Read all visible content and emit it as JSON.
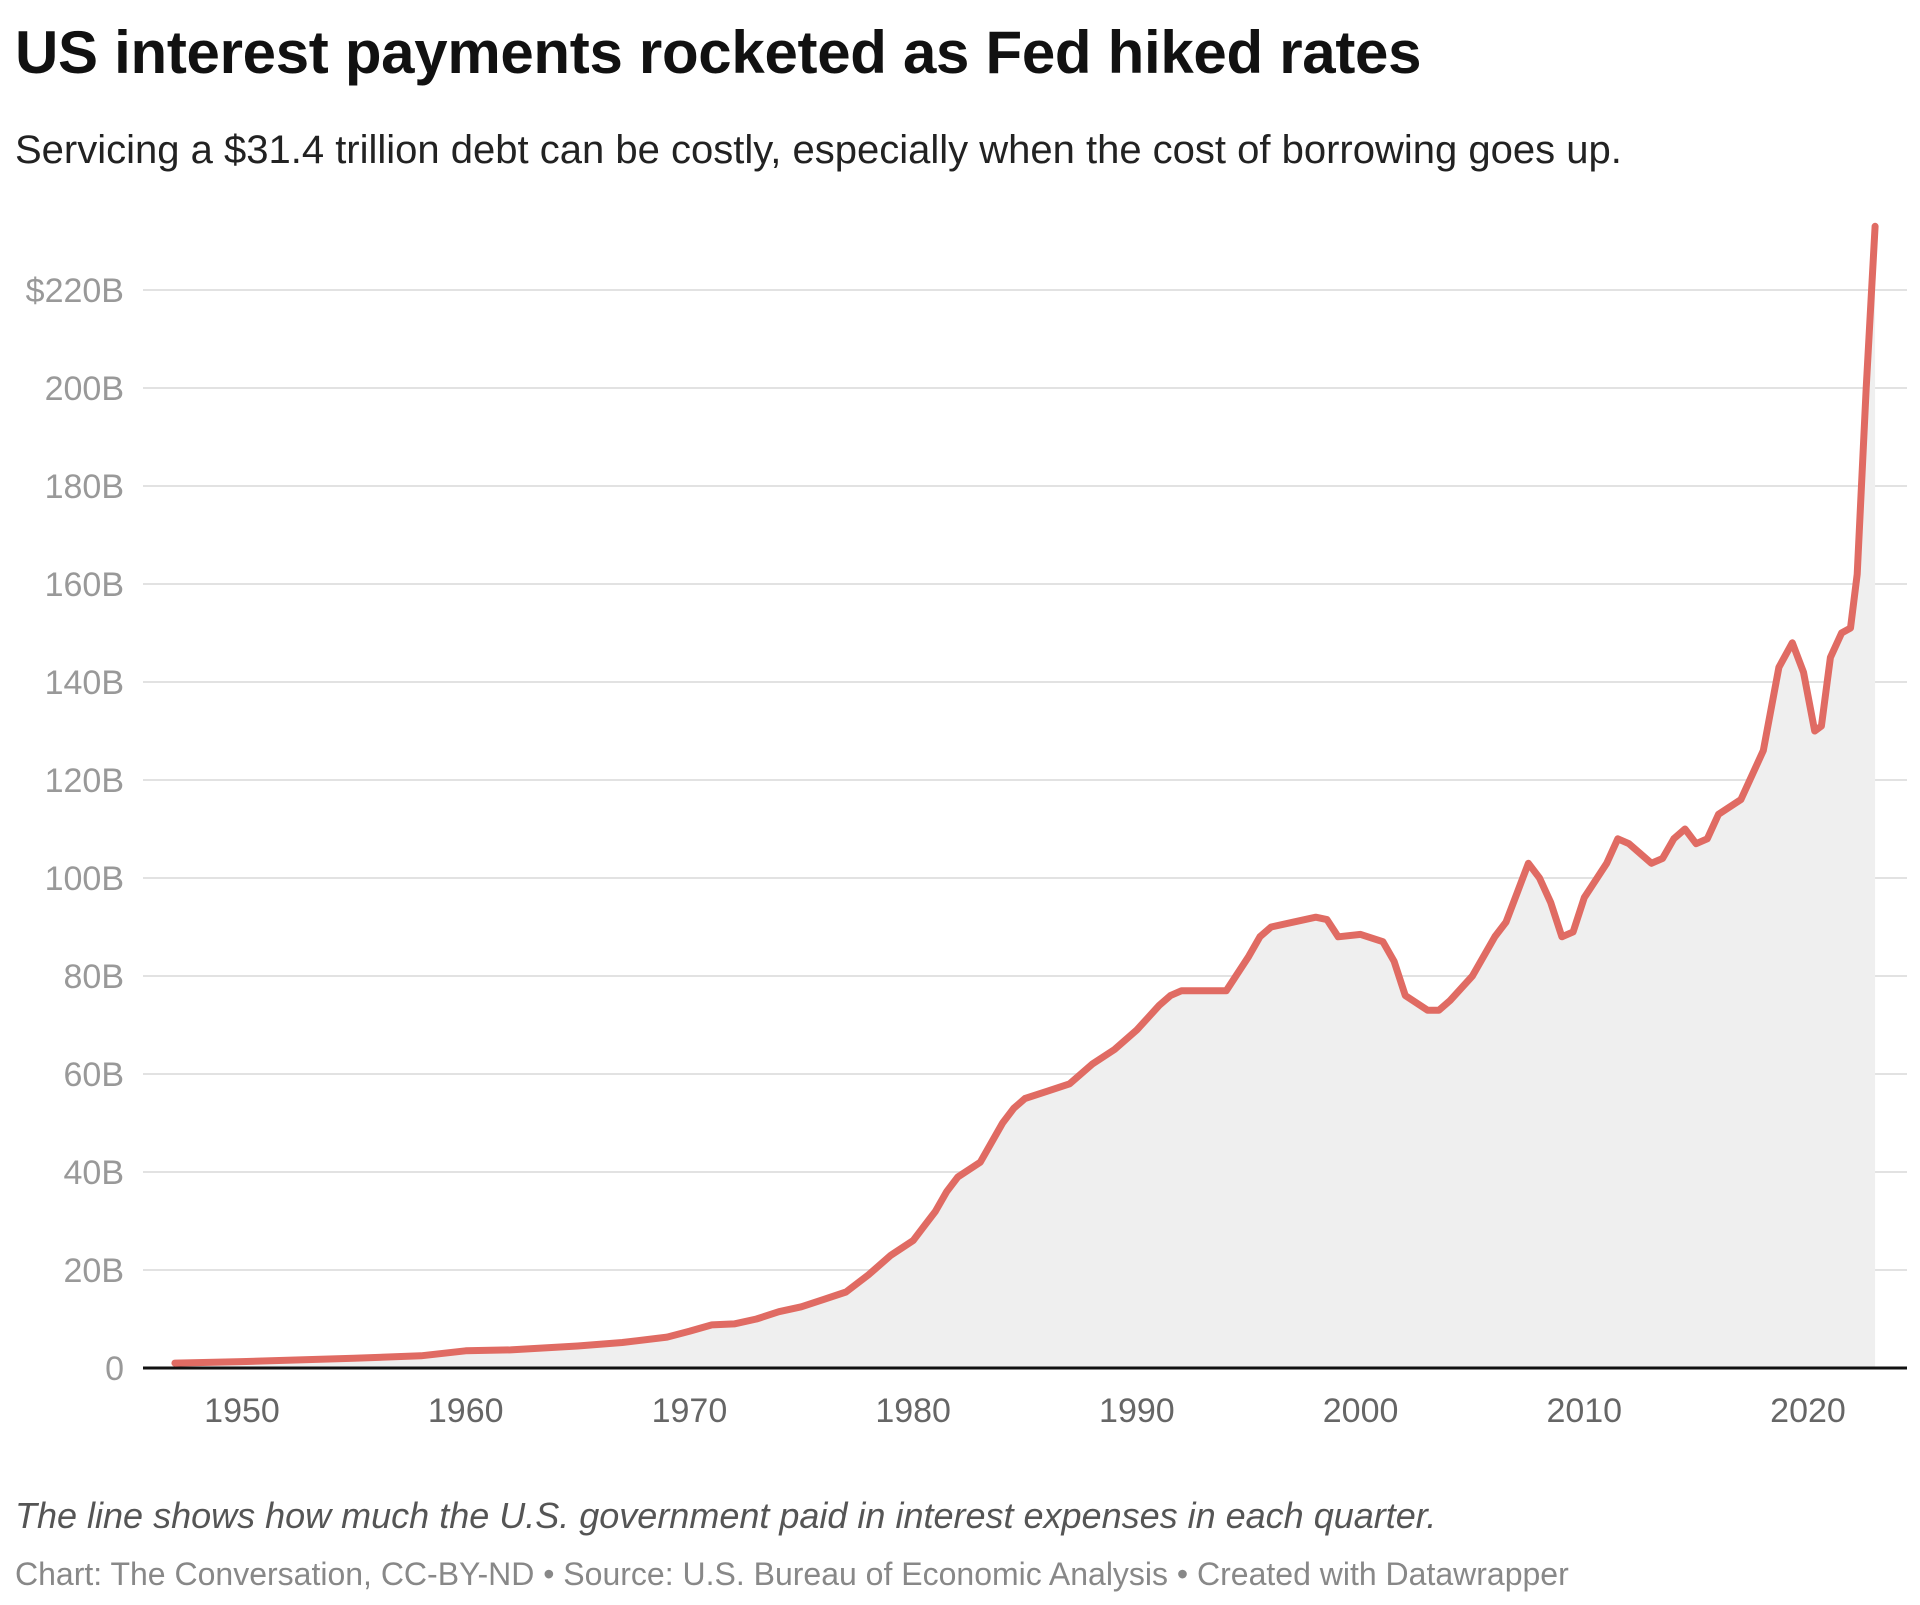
{
  "chart_data": {
    "type": "area",
    "title": "US interest payments rocketed as Fed hiked rates",
    "subtitle": "Servicing a $31.4 trillion debt can be costly, especially when the cost of borrowing goes up.",
    "notes": "The line shows how much the U.S. government paid in interest expenses in each quarter.",
    "credits": "Chart: The Conversation, CC-BY-ND • Source: U.S. Bureau of Economic Analysis • Created with Datawrapper",
    "xlabel": "",
    "ylabel": "",
    "xlim": [
      1947,
      2023
    ],
    "ylim": [
      0,
      220
    ],
    "grid": true,
    "line_color": "#e06b63",
    "fill_color": "#efefef",
    "y_ticks": [
      {
        "value": 0,
        "label": "0"
      },
      {
        "value": 20,
        "label": "20B"
      },
      {
        "value": 40,
        "label": "40B"
      },
      {
        "value": 60,
        "label": "60B"
      },
      {
        "value": 80,
        "label": "80B"
      },
      {
        "value": 100,
        "label": "100B"
      },
      {
        "value": 120,
        "label": "120B"
      },
      {
        "value": 140,
        "label": "140B"
      },
      {
        "value": 160,
        "label": "160B"
      },
      {
        "value": 180,
        "label": "180B"
      },
      {
        "value": 200,
        "label": "200B"
      },
      {
        "value": 220,
        "label": "$220B"
      }
    ],
    "x_ticks": [
      {
        "value": 1950,
        "label": "1950"
      },
      {
        "value": 1960,
        "label": "1960"
      },
      {
        "value": 1970,
        "label": "1970"
      },
      {
        "value": 1980,
        "label": "1980"
      },
      {
        "value": 1990,
        "label": "1990"
      },
      {
        "value": 2000,
        "label": "2000"
      },
      {
        "value": 2010,
        "label": "2010"
      },
      {
        "value": 2020,
        "label": "2020"
      }
    ],
    "series": [
      {
        "x": [
          1947,
          1950,
          1955,
          1958,
          1960,
          1962,
          1965,
          1967,
          1969,
          1970,
          1971,
          1972,
          1973,
          1974,
          1975,
          1976,
          1977,
          1978,
          1979,
          1980,
          1980.5,
          1981,
          1981.5,
          1982,
          1983,
          1984,
          1984.5,
          1985,
          1986,
          1987,
          1987.5,
          1988,
          1989,
          1990,
          1991,
          1991.5,
          1992,
          1993,
          1994,
          1995,
          1995.5,
          1996,
          1997,
          1998,
          1998.5,
          1999,
          2000,
          2001,
          2001.5,
          2002,
          2003,
          2003.5,
          2004,
          2005,
          2006,
          2006.5,
          2007,
          2007.5,
          2008,
          2008.5,
          2009,
          2009.5,
          2010,
          2011,
          2011.5,
          2012,
          2013,
          2013.5,
          2014,
          2014.5,
          2015,
          2015.5,
          2016,
          2017,
          2018,
          2018.7,
          2019.3,
          2019.8,
          2020.3,
          2020.6,
          2021,
          2021.5,
          2021.9,
          2022.2,
          2022.6,
          2023
        ],
        "y": [
          1,
          1.3,
          2,
          2.5,
          3.5,
          3.7,
          4.5,
          5.2,
          6.3,
          7.5,
          8.8,
          9,
          10,
          11.5,
          12.5,
          14,
          15.5,
          19,
          23,
          26,
          29,
          32,
          36,
          39,
          42,
          50,
          53,
          55,
          56.5,
          58,
          60,
          62,
          65,
          69,
          74,
          76,
          77,
          77,
          77,
          84,
          88,
          90,
          91,
          92,
          91.5,
          88,
          88.5,
          87,
          83,
          76,
          73,
          73,
          75,
          80,
          88,
          91,
          97,
          103,
          100,
          95,
          88,
          89,
          96,
          103,
          108,
          107,
          103,
          104,
          108,
          110,
          107,
          108,
          113,
          116,
          126,
          143,
          148,
          142,
          130,
          131,
          145,
          150,
          151,
          162,
          200,
          233
        ]
      }
    ]
  }
}
